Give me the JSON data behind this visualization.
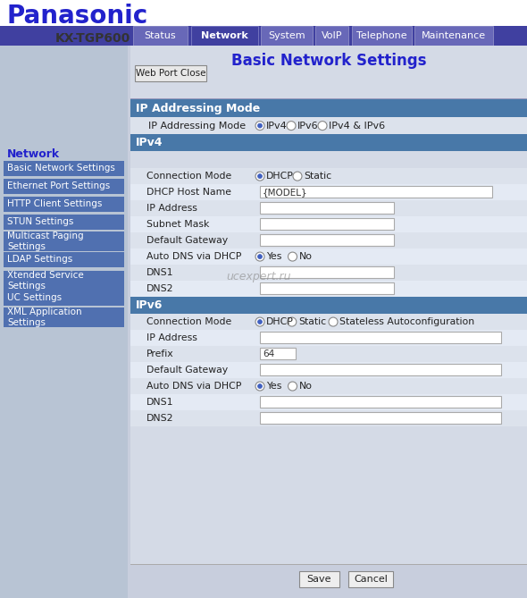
{
  "title": "Basic Network Settings",
  "panasonic_text": "Panasonic",
  "model_text": "KX-TGP600",
  "nav_tabs": [
    "Status",
    "Network",
    "System",
    "VoIP",
    "Telephone",
    "Maintenance"
  ],
  "active_tab": "Network",
  "tab_bar_color": "#4040a0",
  "active_tab_color": "#4040a0",
  "inactive_tab_color": "#6060b0",
  "left_panel_bg": "#b0bcd0",
  "right_panel_bg": "#d8dde8",
  "header_bg": "#ffffff",
  "section_header_color": "#4070a8",
  "section_text_color": "#ffffff",
  "row_bg_odd": "#dce2ec",
  "row_bg_even": "#e8ecf4",
  "sidebar_items": [
    "Basic Network Settings",
    "Ethernet Port Settings",
    "HTTP Client Settings",
    "STUN Settings",
    "Multicast Paging\nSettings",
    "LDAP Settings",
    "Xtended Service\nSettings",
    "UC Settings",
    "XML Application\nSettings"
  ],
  "sidebar_item_color": "#4060a8",
  "sidebar_text_color": "#ffffff",
  "network_label_color": "#3333cc",
  "ip_mode_label": "IP Addressing Mode",
  "ip_mode_options": [
    "IPv4",
    "IPv6",
    "IPv4 & IPv6"
  ],
  "ipv4_label": "IPv4",
  "ipv4_rows": [
    {
      "label": "Connection Mode",
      "type": "radio2",
      "options": [
        "DHCP",
        "Static"
      ],
      "selected": 0
    },
    {
      "label": "DHCP Host Name",
      "type": "text",
      "value": "{MODEL}"
    },
    {
      "label": "IP Address",
      "type": "textbox_small",
      "value": ""
    },
    {
      "label": "Subnet Mask",
      "type": "textbox_small",
      "value": ""
    },
    {
      "label": "Default Gateway",
      "type": "textbox_small",
      "value": ""
    },
    {
      "label": "Auto DNS via DHCP",
      "type": "radio2",
      "options": [
        "Yes",
        "No"
      ],
      "selected": 0
    },
    {
      "label": "DNS1",
      "type": "textbox_small",
      "value": ""
    },
    {
      "label": "DNS2",
      "type": "textbox_small",
      "value": ""
    }
  ],
  "ipv6_label": "IPv6",
  "ipv6_rows": [
    {
      "label": "Connection Mode",
      "type": "radio3",
      "options": [
        "DHCP",
        "Static",
        "Stateless Autoconfiguration"
      ],
      "selected": 0
    },
    {
      "label": "IP Address",
      "type": "textbox_large",
      "value": ""
    },
    {
      "label": "Prefix",
      "type": "textbox_tiny",
      "value": "64"
    },
    {
      "label": "Default Gateway",
      "type": "textbox_large",
      "value": ""
    },
    {
      "label": "Auto DNS via DHCP",
      "type": "radio2",
      "options": [
        "Yes",
        "No"
      ],
      "selected": 0
    },
    {
      "label": "DNS1",
      "type": "textbox_large",
      "value": ""
    },
    {
      "label": "DNS2",
      "type": "textbox_large",
      "value": ""
    }
  ],
  "watermark": "ucexpert.ru",
  "btn_save": "Save",
  "btn_cancel": "Cancel",
  "top_button": "Web Port Close"
}
